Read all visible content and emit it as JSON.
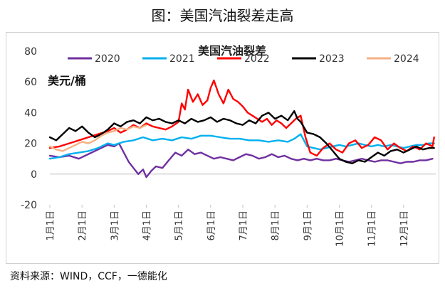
{
  "page_title": "图：美国汽油裂差走高",
  "source": "资料来源：WIND，CCF，一德能化",
  "chart_data": {
    "type": "line",
    "title": "美国汽油裂差",
    "ylabel": "美元/桶",
    "xlabel": "",
    "ylim": [
      -20,
      80
    ],
    "yticks": [
      -20,
      0,
      20,
      40,
      60,
      80
    ],
    "xlim": [
      0,
      12
    ],
    "x_ticks": [
      {
        "x": 0,
        "label": "1月1日"
      },
      {
        "x": 1,
        "label": "2月1日"
      },
      {
        "x": 2,
        "label": "3月1日"
      },
      {
        "x": 3,
        "label": "4月1日"
      },
      {
        "x": 4,
        "label": "5月1日"
      },
      {
        "x": 5,
        "label": "6月1日"
      },
      {
        "x": 6,
        "label": "7月1日"
      },
      {
        "x": 7,
        "label": "8月1日"
      },
      {
        "x": 8,
        "label": "9月1日"
      },
      {
        "x": 9,
        "label": "10月1日"
      },
      {
        "x": 10,
        "label": "11月1日"
      },
      {
        "x": 11,
        "label": "12月1日"
      }
    ],
    "grid": false,
    "legend_position": "top",
    "series": [
      {
        "name": "2020",
        "color": "#7030a0",
        "x": [
          0,
          0.3,
          0.6,
          0.9,
          1.2,
          1.5,
          1.8,
          2.0,
          2.15,
          2.3,
          2.45,
          2.6,
          2.75,
          2.9,
          3.0,
          3.15,
          3.3,
          3.5,
          3.7,
          3.9,
          4.1,
          4.3,
          4.5,
          4.7,
          4.9,
          5.1,
          5.3,
          5.5,
          5.7,
          5.9,
          6.1,
          6.3,
          6.5,
          6.7,
          6.9,
          7.1,
          7.3,
          7.5,
          7.7,
          7.9,
          8.1,
          8.3,
          8.5,
          8.7,
          8.9,
          9.1,
          9.3,
          9.5,
          9.7,
          9.9,
          10.1,
          10.3,
          10.5,
          10.7,
          10.9,
          11.1,
          11.3,
          11.5,
          11.7,
          11.9
        ],
        "y": [
          12,
          11,
          12,
          10,
          13,
          16,
          19,
          18,
          20,
          14,
          8,
          4,
          0,
          3,
          -2,
          2,
          5,
          4,
          9,
          14,
          12,
          16,
          13,
          14,
          12,
          10,
          11,
          10,
          9,
          11,
          13,
          12,
          10,
          11,
          13,
          11,
          12,
          10,
          9,
          10,
          9,
          10,
          9,
          9,
          10,
          9,
          8,
          9,
          10,
          9,
          8,
          9,
          9,
          8,
          7,
          8,
          8,
          9,
          9,
          10
        ]
      },
      {
        "name": "2021",
        "color": "#00b0f0",
        "x": [
          0,
          0.3,
          0.6,
          0.9,
          1.2,
          1.5,
          1.8,
          2.0,
          2.3,
          2.6,
          2.9,
          3.2,
          3.5,
          3.8,
          4.1,
          4.4,
          4.7,
          5.0,
          5.3,
          5.6,
          5.9,
          6.2,
          6.5,
          6.8,
          7.1,
          7.4,
          7.6,
          7.8,
          8.0,
          8.2,
          8.4,
          8.6,
          8.8,
          9.0,
          9.2,
          9.4,
          9.6,
          9.8,
          10.0,
          10.2,
          10.4,
          10.6,
          10.8,
          11.0,
          11.2,
          11.4,
          11.6,
          11.8,
          11.95
        ],
        "y": [
          10,
          11,
          13,
          14,
          15,
          17,
          20,
          19,
          21,
          22,
          24,
          22,
          23,
          22,
          24,
          23,
          25,
          25,
          24,
          23,
          23,
          22,
          22,
          21,
          22,
          21,
          23,
          26,
          18,
          17,
          16,
          17,
          18,
          19,
          18,
          19,
          20,
          19,
          18,
          19,
          18,
          19,
          18,
          17,
          18,
          19,
          19,
          20,
          20
        ]
      },
      {
        "name": "2022",
        "color": "#ff0000",
        "x": [
          0,
          0.3,
          0.6,
          0.9,
          1.2,
          1.5,
          1.8,
          2.0,
          2.2,
          2.4,
          2.6,
          2.8,
          3.0,
          3.2,
          3.4,
          3.6,
          3.8,
          4.0,
          4.1,
          4.2,
          4.3,
          4.45,
          4.6,
          4.75,
          4.9,
          5.0,
          5.1,
          5.25,
          5.4,
          5.55,
          5.7,
          5.85,
          6.0,
          6.15,
          6.3,
          6.45,
          6.6,
          6.75,
          6.9,
          7.05,
          7.2,
          7.35,
          7.5,
          7.65,
          7.8,
          7.95,
          8.1,
          8.3,
          8.5,
          8.7,
          8.9,
          9.1,
          9.3,
          9.5,
          9.7,
          9.9,
          10.1,
          10.3,
          10.5,
          10.7,
          10.9,
          11.1,
          11.3,
          11.5,
          11.7,
          11.9,
          11.95
        ],
        "y": [
          17,
          18,
          20,
          22,
          24,
          26,
          28,
          30,
          27,
          29,
          32,
          30,
          33,
          31,
          30,
          29,
          31,
          34,
          46,
          42,
          55,
          47,
          52,
          45,
          48,
          56,
          61,
          52,
          46,
          55,
          49,
          47,
          44,
          40,
          38,
          36,
          34,
          36,
          32,
          35,
          33,
          30,
          33,
          36,
          38,
          24,
          14,
          12,
          17,
          20,
          16,
          14,
          20,
          22,
          17,
          19,
          24,
          22,
          16,
          20,
          17,
          15,
          18,
          16,
          20,
          18,
          24
        ]
      },
      {
        "name": "2023",
        "color": "#000000",
        "x": [
          0,
          0.2,
          0.4,
          0.6,
          0.8,
          1.0,
          1.2,
          1.4,
          1.6,
          1.8,
          2.0,
          2.2,
          2.4,
          2.6,
          2.8,
          3.0,
          3.2,
          3.4,
          3.6,
          3.8,
          4.0,
          4.2,
          4.4,
          4.6,
          4.8,
          5.0,
          5.2,
          5.4,
          5.6,
          5.8,
          6.0,
          6.2,
          6.4,
          6.6,
          6.8,
          7.0,
          7.2,
          7.4,
          7.6,
          7.7,
          7.8,
          8.0,
          8.2,
          8.4,
          8.6,
          8.8,
          9.0,
          9.2,
          9.4,
          9.6,
          9.8,
          10.0,
          10.2,
          10.4,
          10.6,
          10.8,
          11.0,
          11.2,
          11.4,
          11.6,
          11.8,
          11.95
        ],
        "y": [
          24,
          22,
          26,
          30,
          28,
          31,
          27,
          24,
          26,
          29,
          33,
          31,
          34,
          35,
          33,
          37,
          35,
          36,
          34,
          33,
          35,
          33,
          36,
          34,
          35,
          37,
          34,
          36,
          35,
          33,
          32,
          35,
          33,
          38,
          40,
          36,
          38,
          35,
          41,
          36,
          34,
          27,
          26,
          24,
          20,
          15,
          10,
          8,
          7,
          9,
          8,
          11,
          14,
          12,
          15,
          16,
          14,
          16,
          18,
          16,
          17,
          17
        ]
      },
      {
        "name": "2024",
        "color": "#f4b183",
        "x": [
          0,
          0.2,
          0.4,
          0.6,
          0.8,
          1.0,
          1.2,
          1.4,
          1.6,
          1.8,
          2.0,
          2.2,
          2.4,
          2.6,
          2.8,
          3.0
        ],
        "y": [
          18,
          16,
          15,
          17,
          19,
          21,
          20,
          22,
          25,
          27,
          28,
          30,
          29,
          31,
          30,
          32
        ]
      }
    ]
  }
}
